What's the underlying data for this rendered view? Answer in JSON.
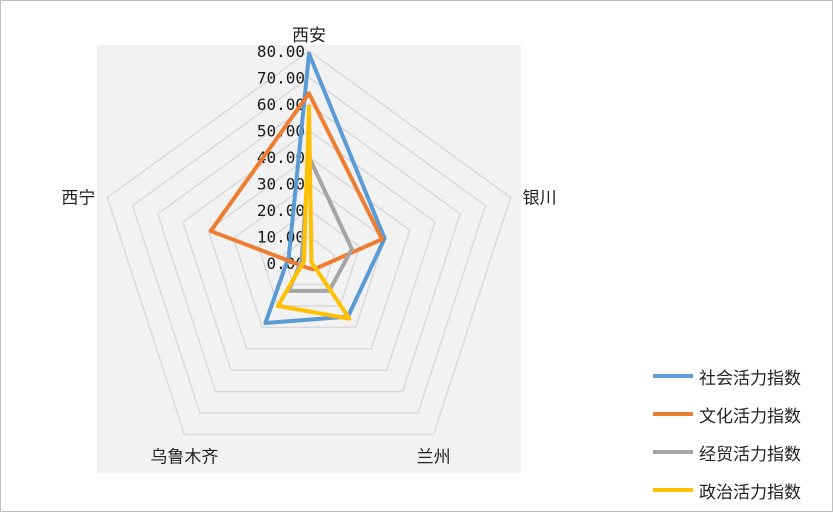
{
  "chart_data": {
    "type": "radar",
    "categories": [
      "西安",
      "银川",
      "兰州",
      "乌鲁木齐",
      "西宁"
    ],
    "rmax": 80,
    "ticks": [
      "0.00",
      "10.00",
      "20.00",
      "30.00",
      "40.00",
      "50.00",
      "60.00",
      "70.00",
      "80.00"
    ],
    "series": [
      {
        "name": "社会活力指数",
        "color": "#5b9bd5",
        "values": [
          79,
          30,
          25,
          28,
          8
        ]
      },
      {
        "name": "文化活力指数",
        "color": "#ed7d31",
        "values": [
          64,
          29,
          3,
          2,
          39
        ]
      },
      {
        "name": "经贸活力指数",
        "color": "#a5a5a5",
        "values": [
          40,
          17,
          13,
          13,
          3
        ]
      },
      {
        "name": "政治活力指数",
        "color": "#ffc000",
        "values": [
          59,
          1,
          26,
          20,
          2
        ]
      }
    ],
    "legend_position": "bottom-right",
    "plot_background": "#f2f2f2",
    "grid_color": "#d9d9d9"
  }
}
